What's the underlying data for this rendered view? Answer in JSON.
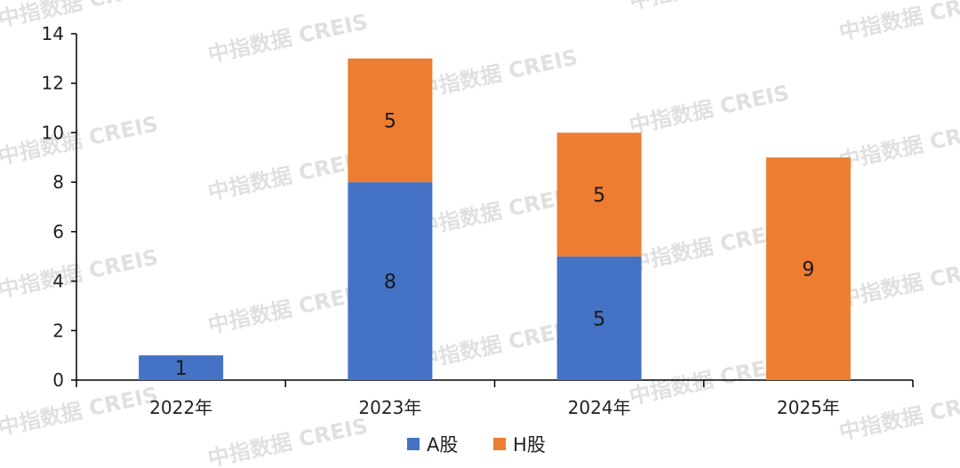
{
  "watermark": "中指数据 CREIS",
  "chart_data": {
    "type": "bar",
    "stacked": true,
    "categories": [
      "2022年",
      "2023年",
      "2024年",
      "2025年"
    ],
    "series": [
      {
        "name": "A股",
        "values": [
          1,
          8,
          5,
          0
        ],
        "color": "#4472c4"
      },
      {
        "name": "H股",
        "values": [
          0,
          5,
          5,
          9
        ],
        "color": "#ed7d31"
      }
    ],
    "ylim": [
      0,
      14
    ],
    "yticks": [
      0,
      2,
      4,
      6,
      8,
      10,
      12,
      14
    ],
    "grid": false,
    "legend_position": "bottom-center",
    "title": "",
    "xlabel": "",
    "ylabel": ""
  }
}
